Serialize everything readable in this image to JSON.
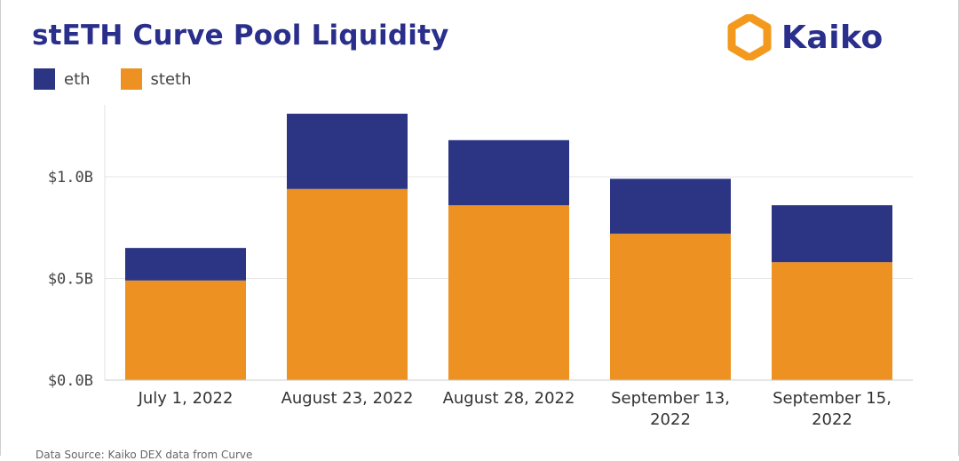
{
  "header": {
    "title": "stETH Curve Pool Liquidity",
    "brand": "Kaiko",
    "brand_icon": "kaiko-logo-icon"
  },
  "colors": {
    "eth": "#2b3584",
    "steth": "#ec9122",
    "title": "#2a2f8c",
    "logo_orange": "#f39a1e"
  },
  "chart_data": {
    "type": "bar",
    "stacked": true,
    "title": "stETH Curve Pool Liquidity",
    "categories": [
      "July 1, 2022",
      "August 23, 2022",
      "August 28, 2022",
      "September 13, 2022",
      "September 15, 2022"
    ],
    "category_lines": [
      [
        "July 1, 2022"
      ],
      [
        "August 23, 2022"
      ],
      [
        "August 28, 2022"
      ],
      [
        "September 13,",
        "2022"
      ],
      [
        "September 15,",
        "2022"
      ]
    ],
    "series": [
      {
        "name": "steth",
        "values": [
          0.49,
          0.94,
          0.86,
          0.72,
          0.58
        ]
      },
      {
        "name": "eth",
        "values": [
          0.16,
          0.37,
          0.32,
          0.27,
          0.28
        ]
      }
    ],
    "y_ticks": [
      0.0,
      0.5,
      1.0
    ],
    "y_tick_labels": [
      "$0.0B",
      "$0.5B",
      "$1.0B"
    ],
    "ylim": [
      0,
      1.4
    ],
    "xlabel": "",
    "ylabel": "",
    "grid": true,
    "legend": [
      "eth",
      "steth"
    ],
    "legend_position": "top-left"
  },
  "footer": {
    "source": "Data Source: Kaiko DEX data from Curve"
  }
}
